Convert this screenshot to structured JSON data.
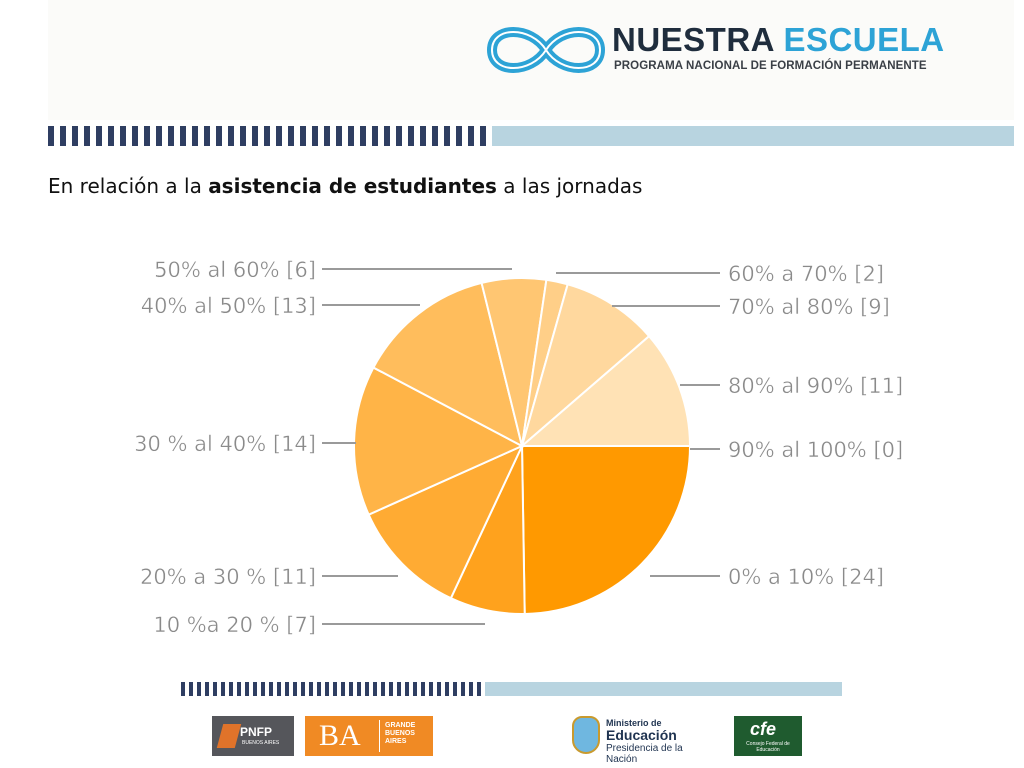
{
  "header": {
    "logo_word1": "NUESTRA",
    "logo_word2": "ESCUELA",
    "logo_subtitle": "PROGRAMA NACIONAL DE FORMACIÓN PERMANENTE"
  },
  "slide": {
    "title_pre": "En relación a la ",
    "title_bold": "asistencia de estudiantes",
    "title_post": " a las jornadas"
  },
  "chart_data": {
    "type": "pie",
    "title": "",
    "slices": [
      {
        "label": "0% a 10% [24]",
        "value": 24,
        "color": "#ff9900"
      },
      {
        "label": "10 %a 20 % [7]",
        "value": 7,
        "color": "#ffa21d"
      },
      {
        "label": "20% a 30 % [11]",
        "value": 11,
        "color": "#ffab33"
      },
      {
        "label": "30 % al 40% [14]",
        "value": 14,
        "color": "#ffb447"
      },
      {
        "label": "40% al 50% [13]",
        "value": 13,
        "color": "#ffbd5c"
      },
      {
        "label": "50% al 60% [6]",
        "value": 6,
        "color": "#ffc672"
      },
      {
        "label": "60% a 70% [2]",
        "value": 2,
        "color": "#ffcf88"
      },
      {
        "label": "70% al 80% [9]",
        "value": 9,
        "color": "#ffd89e"
      },
      {
        "label": "80% al 90% [11]",
        "value": 11,
        "color": "#ffe2b5"
      },
      {
        "label": "90% al 100% [0]",
        "value": 0,
        "color": "#ffeccd"
      }
    ]
  },
  "footer": {
    "pnfp_label": "PNFP",
    "pnfp_sub": "BUENOS AIRES",
    "ba_label": "BA",
    "ba_sub_1": "GRANDE",
    "ba_sub_2": "BUENOS",
    "ba_sub_3": "AIRES",
    "ministerio_line1": "Ministerio de",
    "ministerio_line2": "Educación",
    "ministerio_line3": "Presidencia de la Nación",
    "cfe_label": "cfe",
    "cfe_sub": "Consejo Federal de Educación"
  },
  "colors": {
    "stripe_dark": "#2f3e62",
    "stripe_light": "#b8d4e0",
    "brand_blue": "#2da3d6",
    "label_gray": "#8a8a8a"
  }
}
